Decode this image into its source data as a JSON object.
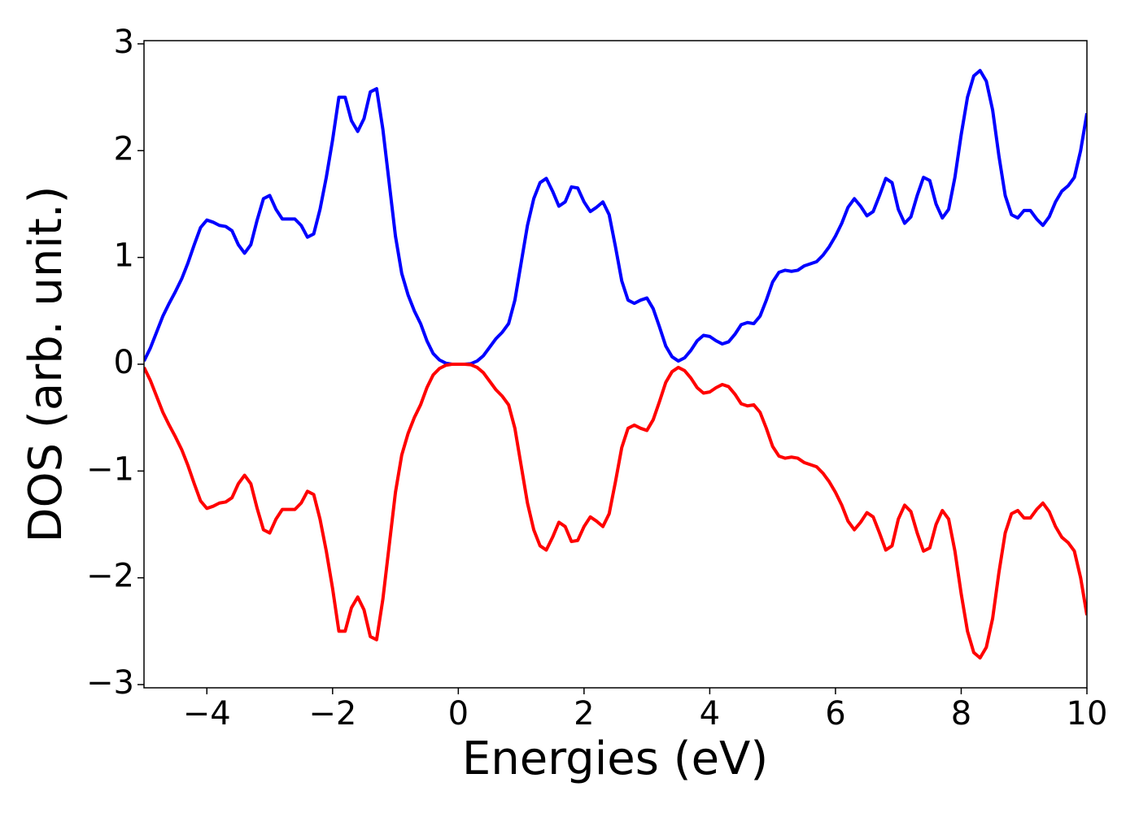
{
  "chart_data": {
    "type": "line",
    "xlabel": "Energies (eV)",
    "ylabel": "DOS (arb. unit.)",
    "x": [
      -5.0,
      -4.9,
      -4.8,
      -4.7,
      -4.6,
      -4.5,
      -4.4,
      -4.3,
      -4.2,
      -4.1,
      -4.0,
      -3.9,
      -3.8,
      -3.7,
      -3.6,
      -3.5,
      -3.4,
      -3.3,
      -3.2,
      -3.1,
      -3.0,
      -2.9,
      -2.8,
      -2.7,
      -2.6,
      -2.5,
      -2.4,
      -2.3,
      -2.2,
      -2.1,
      -2.0,
      -1.9,
      -1.8,
      -1.7,
      -1.6,
      -1.5,
      -1.4,
      -1.3,
      -1.2,
      -1.1,
      -1.0,
      -0.9,
      -0.8,
      -0.7,
      -0.6,
      -0.5,
      -0.4,
      -0.3,
      -0.2,
      -0.1,
      0,
      0.1,
      0.2,
      0.3,
      0.4,
      0.5,
      0.6,
      0.7,
      0.8,
      0.9,
      1.0,
      1.1,
      1.2,
      1.3,
      1.4,
      1.5,
      1.6,
      1.7,
      1.8,
      1.9,
      2.0,
      2.1,
      2.2,
      2.3,
      2.4,
      2.5,
      2.6,
      2.7,
      2.8,
      2.9,
      3.0,
      3.1,
      3.2,
      3.3,
      3.4,
      3.5,
      3.6,
      3.7,
      3.8,
      3.9,
      4.0,
      4.1,
      4.2,
      4.3,
      4.4,
      4.5,
      4.6,
      4.7,
      4.8,
      4.9,
      5.0,
      5.1,
      5.2,
      5.3,
      5.4,
      5.5,
      5.6,
      5.7,
      5.8,
      5.9,
      6.0,
      6.1,
      6.2,
      6.3,
      6.4,
      6.5,
      6.6,
      6.7,
      6.8,
      6.9,
      7.0,
      7.1,
      7.2,
      7.3,
      7.4,
      7.5,
      7.6,
      7.7,
      7.8,
      7.9,
      8.0,
      8.1,
      8.2,
      8.3,
      8.4,
      8.5,
      8.6,
      8.7,
      8.8,
      8.9,
      9.0,
      9.1,
      9.2,
      9.3,
      9.4,
      9.5,
      9.6,
      9.7,
      9.8,
      9.9,
      10.0
    ],
    "series": [
      {
        "color": "#0000ff",
        "values": [
          0.03,
          0.15,
          0.3,
          0.45,
          0.57,
          0.68,
          0.8,
          0.95,
          1.12,
          1.28,
          1.35,
          1.33,
          1.3,
          1.29,
          1.25,
          1.12,
          1.04,
          1.12,
          1.35,
          1.55,
          1.58,
          1.45,
          1.36,
          1.36,
          1.36,
          1.3,
          1.19,
          1.22,
          1.45,
          1.75,
          2.1,
          2.5,
          2.5,
          2.28,
          2.18,
          2.3,
          2.55,
          2.58,
          2.2,
          1.7,
          1.2,
          0.85,
          0.65,
          0.5,
          0.38,
          0.22,
          0.1,
          0.04,
          0.01,
          0,
          0,
          0,
          0.005,
          0.03,
          0.08,
          0.16,
          0.24,
          0.3,
          0.38,
          0.6,
          0.95,
          1.3,
          1.55,
          1.7,
          1.74,
          1.62,
          1.48,
          1.52,
          1.66,
          1.65,
          1.52,
          1.43,
          1.47,
          1.52,
          1.4,
          1.1,
          0.78,
          0.6,
          0.57,
          0.6,
          0.62,
          0.52,
          0.35,
          0.17,
          0.07,
          0.03,
          0.06,
          0.13,
          0.22,
          0.27,
          0.26,
          0.22,
          0.19,
          0.21,
          0.28,
          0.37,
          0.39,
          0.38,
          0.45,
          0.6,
          0.77,
          0.86,
          0.88,
          0.87,
          0.88,
          0.92,
          0.94,
          0.96,
          1.02,
          1.1,
          1.2,
          1.32,
          1.47,
          1.55,
          1.48,
          1.39,
          1.43,
          1.58,
          1.74,
          1.7,
          1.45,
          1.32,
          1.38,
          1.58,
          1.75,
          1.72,
          1.5,
          1.37,
          1.45,
          1.75,
          2.15,
          2.5,
          2.7,
          2.75,
          2.65,
          2.38,
          1.95,
          1.58,
          1.4,
          1.37,
          1.44,
          1.44,
          1.36,
          1.3,
          1.38,
          1.52,
          1.62,
          1.67,
          1.75,
          2.0,
          2.35
        ]
      },
      {
        "color": "#ff0000",
        "values": [
          -0.03,
          -0.15,
          -0.3,
          -0.45,
          -0.57,
          -0.68,
          -0.8,
          -0.95,
          -1.12,
          -1.28,
          -1.35,
          -1.33,
          -1.3,
          -1.29,
          -1.25,
          -1.12,
          -1.04,
          -1.12,
          -1.35,
          -1.55,
          -1.58,
          -1.45,
          -1.36,
          -1.36,
          -1.36,
          -1.3,
          -1.19,
          -1.22,
          -1.45,
          -1.75,
          -2.1,
          -2.5,
          -2.5,
          -2.28,
          -2.18,
          -2.3,
          -2.55,
          -2.58,
          -2.2,
          -1.7,
          -1.2,
          -0.85,
          -0.65,
          -0.5,
          -0.38,
          -0.22,
          -0.1,
          -0.04,
          -0.01,
          0,
          0,
          0,
          -0.005,
          -0.03,
          -0.08,
          -0.16,
          -0.24,
          -0.3,
          -0.38,
          -0.6,
          -0.95,
          -1.3,
          -1.55,
          -1.7,
          -1.74,
          -1.62,
          -1.48,
          -1.52,
          -1.66,
          -1.65,
          -1.52,
          -1.43,
          -1.47,
          -1.52,
          -1.4,
          -1.1,
          -0.78,
          -0.6,
          -0.57,
          -0.6,
          -0.62,
          -0.52,
          -0.35,
          -0.17,
          -0.07,
          -0.03,
          -0.06,
          -0.13,
          -0.22,
          -0.27,
          -0.26,
          -0.22,
          -0.19,
          -0.21,
          -0.28,
          -0.37,
          -0.39,
          -0.38,
          -0.45,
          -0.6,
          -0.77,
          -0.86,
          -0.88,
          -0.87,
          -0.88,
          -0.92,
          -0.94,
          -0.96,
          -1.02,
          -1.1,
          -1.2,
          -1.32,
          -1.47,
          -1.55,
          -1.48,
          -1.39,
          -1.43,
          -1.58,
          -1.74,
          -1.7,
          -1.45,
          -1.32,
          -1.38,
          -1.58,
          -1.75,
          -1.72,
          -1.5,
          -1.37,
          -1.45,
          -1.75,
          -2.15,
          -2.5,
          -2.7,
          -2.75,
          -2.65,
          -2.38,
          -1.95,
          -1.58,
          -1.4,
          -1.37,
          -1.44,
          -1.44,
          -1.36,
          -1.3,
          -1.38,
          -1.52,
          -1.62,
          -1.67,
          -1.75,
          -2.0,
          -2.35
        ]
      }
    ],
    "xlim": [
      -5,
      10
    ],
    "xticks": [
      {
        "value": -4,
        "label": "−4"
      },
      {
        "value": -2,
        "label": "−2"
      },
      0,
      2,
      4,
      6,
      8,
      10
    ],
    "ylim": [
      -3.03,
      3.03
    ],
    "yticks": [
      {
        "value": -3,
        "label": "−3"
      },
      {
        "value": -2,
        "label": "−2"
      },
      {
        "value": -1,
        "label": "−1"
      },
      0,
      1,
      2,
      3
    ],
    "grid": false
  }
}
